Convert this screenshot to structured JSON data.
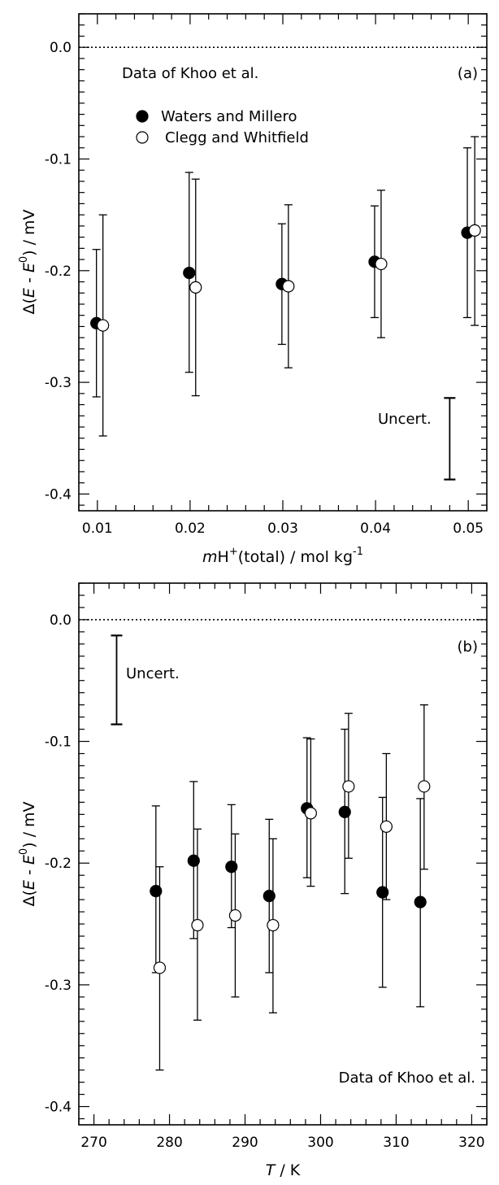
{
  "chart_data": [
    {
      "type": "scatter",
      "panel_label": "(a)",
      "annotation": "Data of Khoo et al.",
      "uncert_label": "Uncert.",
      "uncertainty": {
        "x": 0.048,
        "low": -0.387,
        "high": -0.314
      },
      "xlabel": {
        "prefix": "m",
        "mid": "H",
        "sup1": "+",
        "rest": "(total) / mol kg",
        "sup2": "-1"
      },
      "ylabel": {
        "a": "Δ(",
        "b": "E",
        "c": " - ",
        "d": "E",
        "sup": "0",
        "e": ") / mV"
      },
      "xlim": [
        0.008,
        0.052
      ],
      "ylim": [
        -0.415,
        0.03
      ],
      "x_ticks": [
        "0.01",
        "0.02",
        "0.03",
        "0.04",
        "0.05"
      ],
      "y_ticks": [
        "0.0",
        "-0.1",
        "-0.2",
        "-0.3",
        "-0.4"
      ],
      "legend": {
        "placement": "top-left",
        "entries": [
          "Waters and Millero",
          "Clegg and Whitfield"
        ]
      },
      "series": [
        {
          "name": "Waters and Millero",
          "marker": "filled",
          "points": [
            {
              "x": 0.0099,
              "y": -0.247,
              "lo": -0.313,
              "hi": -0.181
            },
            {
              "x": 0.0199,
              "y": -0.202,
              "lo": -0.291,
              "hi": -0.112
            },
            {
              "x": 0.0299,
              "y": -0.212,
              "lo": -0.266,
              "hi": -0.158
            },
            {
              "x": 0.0399,
              "y": -0.192,
              "lo": -0.242,
              "hi": -0.142
            },
            {
              "x": 0.0499,
              "y": -0.166,
              "lo": -0.242,
              "hi": -0.09
            }
          ]
        },
        {
          "name": "Clegg and Whitfield",
          "marker": "open",
          "points": [
            {
              "x": 0.0106,
              "y": -0.249,
              "lo": -0.348,
              "hi": -0.15
            },
            {
              "x": 0.0206,
              "y": -0.215,
              "lo": -0.312,
              "hi": -0.118
            },
            {
              "x": 0.0306,
              "y": -0.214,
              "lo": -0.287,
              "hi": -0.141
            },
            {
              "x": 0.0406,
              "y": -0.194,
              "lo": -0.26,
              "hi": -0.128
            },
            {
              "x": 0.0507,
              "y": -0.164,
              "lo": -0.249,
              "hi": -0.08
            }
          ]
        }
      ]
    },
    {
      "type": "scatter",
      "panel_label": "(b)",
      "annotation": "Data of Khoo et al.",
      "uncert_label": "Uncert.",
      "uncertainty": {
        "x": 273.0,
        "low": -0.086,
        "high": -0.013
      },
      "xlabel": {
        "prefix": "T",
        "rest": " / K"
      },
      "ylabel": {
        "a": "Δ(",
        "b": "E",
        "c": " - ",
        "d": "E",
        "sup": "0",
        "e": ") / mV"
      },
      "xlim": [
        268,
        322
      ],
      "ylim": [
        -0.415,
        0.03
      ],
      "x_ticks": [
        "270",
        "280",
        "290",
        "300",
        "310",
        "320"
      ],
      "y_ticks": [
        "0.0",
        "-0.1",
        "-0.2",
        "-0.3",
        "-0.4"
      ],
      "series": [
        {
          "name": "Waters and Millero",
          "marker": "filled",
          "points": [
            {
              "x": 278.2,
              "y": -0.223,
              "lo": -0.29,
              "hi": -0.153
            },
            {
              "x": 283.2,
              "y": -0.198,
              "lo": -0.262,
              "hi": -0.133
            },
            {
              "x": 288.2,
              "y": -0.203,
              "lo": -0.253,
              "hi": -0.152
            },
            {
              "x": 293.2,
              "y": -0.227,
              "lo": -0.29,
              "hi": -0.164
            },
            {
              "x": 298.2,
              "y": -0.155,
              "lo": -0.212,
              "hi": -0.097
            },
            {
              "x": 303.2,
              "y": -0.158,
              "lo": -0.225,
              "hi": -0.09
            },
            {
              "x": 308.2,
              "y": -0.224,
              "lo": -0.302,
              "hi": -0.146
            },
            {
              "x": 313.2,
              "y": -0.232,
              "lo": -0.318,
              "hi": -0.147
            }
          ]
        },
        {
          "name": "Clegg and Whitfield",
          "marker": "open",
          "points": [
            {
              "x": 278.7,
              "y": -0.286,
              "lo": -0.37,
              "hi": -0.203
            },
            {
              "x": 283.7,
              "y": -0.251,
              "lo": -0.329,
              "hi": -0.172
            },
            {
              "x": 288.7,
              "y": -0.243,
              "lo": -0.31,
              "hi": -0.176
            },
            {
              "x": 293.7,
              "y": -0.251,
              "lo": -0.323,
              "hi": -0.18
            },
            {
              "x": 298.7,
              "y": -0.159,
              "lo": -0.219,
              "hi": -0.098
            },
            {
              "x": 303.7,
              "y": -0.137,
              "lo": -0.196,
              "hi": -0.077
            },
            {
              "x": 308.7,
              "y": -0.17,
              "lo": -0.23,
              "hi": -0.11
            },
            {
              "x": 313.7,
              "y": -0.137,
              "lo": -0.205,
              "hi": -0.07
            }
          ]
        }
      ]
    }
  ]
}
